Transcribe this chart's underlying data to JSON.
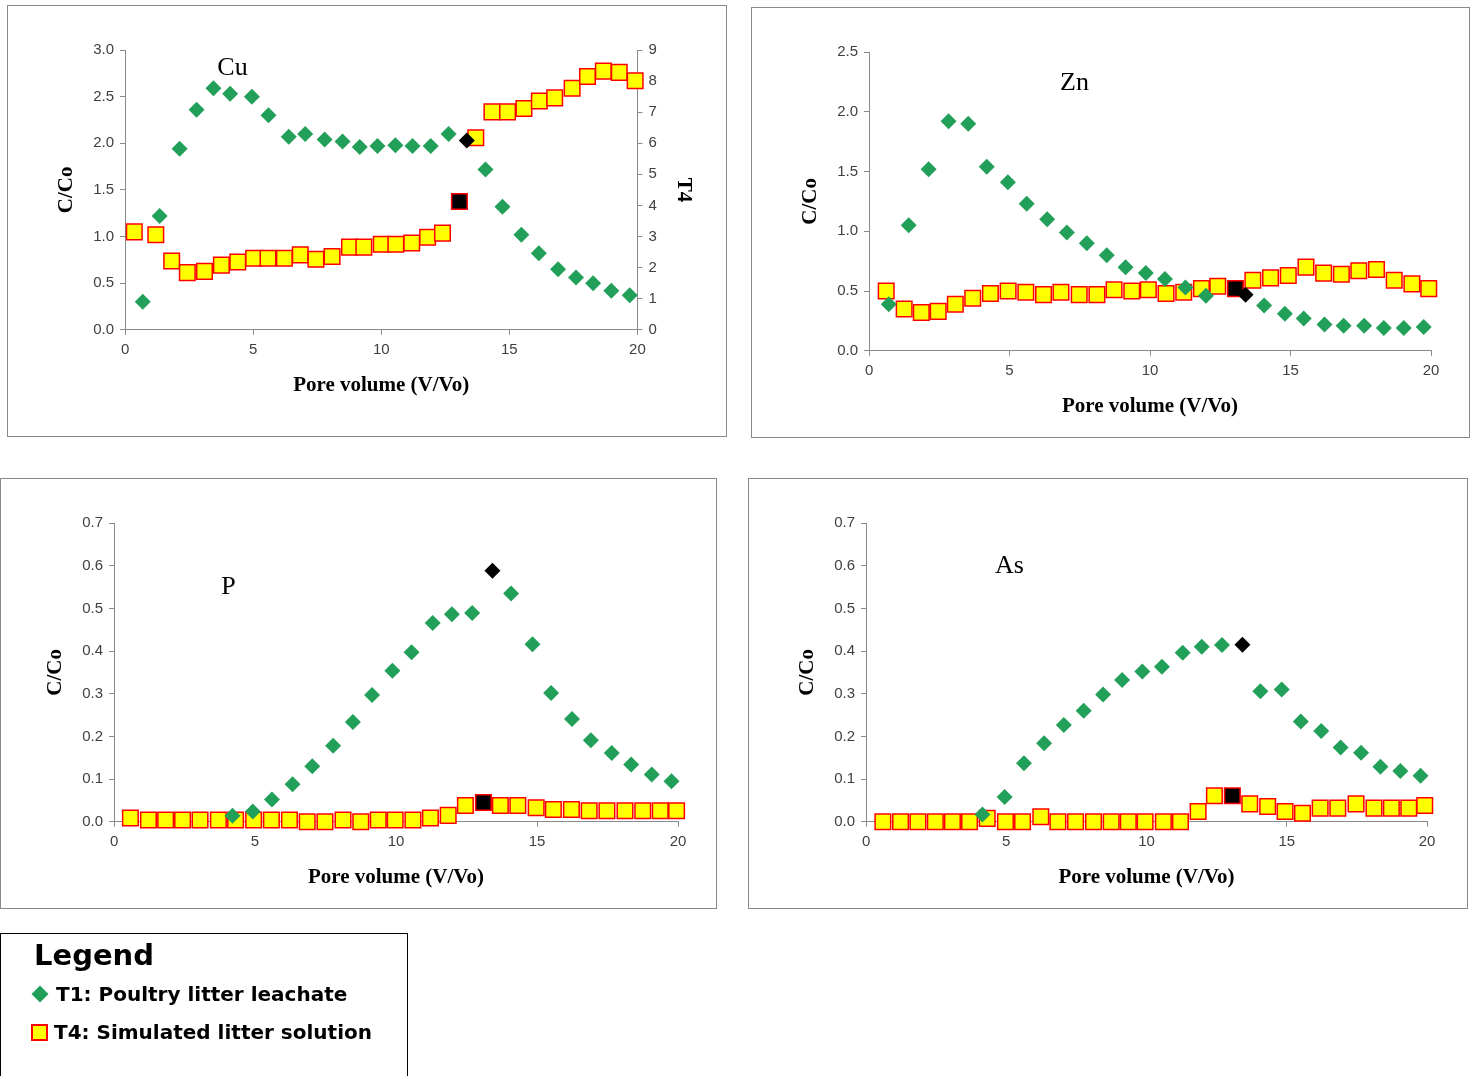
{
  "chart_data": [
    {
      "type": "scatter",
      "title": "Cu",
      "xlabel": "Pore volume (V/Vo)",
      "ylabel": "C/Co",
      "y2label": "T4",
      "legend": "bottom left",
      "legend_title": "Legend",
      "grid": false,
      "xlim": [
        0,
        20
      ],
      "xticks": [
        0,
        5,
        10,
        15,
        20
      ],
      "ylim": [
        0,
        3
      ],
      "yticks": [
        {
          "value": 0,
          "label": "0.0"
        },
        {
          "value": 0.5,
          "label": "0.5"
        },
        {
          "value": 1,
          "label": "1.0"
        },
        {
          "value": 1.5,
          "label": "1.5"
        },
        {
          "value": 2,
          "label": "2.0"
        },
        {
          "value": 2.5,
          "label": "2.5"
        },
        {
          "value": 3,
          "label": "3.0"
        }
      ],
      "y2lim": [
        0,
        9
      ],
      "y2ticks": [
        0,
        1,
        2,
        3,
        4,
        5,
        6,
        7,
        8,
        9
      ],
      "series": [
        {
          "name": "T1: Poultry litter leachate",
          "marker": "diamond",
          "color": "#22a05a",
          "x": [
            0.69,
            1.35,
            2.13,
            2.79,
            3.45,
            4.1,
            4.95,
            5.6,
            6.39,
            7.03,
            7.79,
            8.49,
            9.16,
            9.85,
            10.55,
            11.22,
            11.93,
            12.63,
            13.34,
            14.07,
            14.73,
            15.47,
            16.15,
            16.9,
            17.6,
            18.27,
            18.98,
            19.7
          ],
          "values": [
            0.3,
            1.22,
            1.94,
            2.36,
            2.59,
            2.53,
            2.5,
            2.3,
            2.07,
            2.1,
            2.04,
            2.02,
            1.96,
            1.97,
            1.98,
            1.97,
            1.97,
            2.1,
            2.03,
            1.72,
            1.32,
            1.02,
            0.82,
            0.65,
            0.56,
            0.5,
            0.42,
            0.37
          ],
          "colors": [
            "#22a05a",
            "#22a05a",
            "#22a05a",
            "#22a05a",
            "#22a05a",
            "#22a05a",
            "#22a05a",
            "#22a05a",
            "#22a05a",
            "#22a05a",
            "#22a05a",
            "#22a05a",
            "#22a05a",
            "#22a05a",
            "#22a05a",
            "#22a05a",
            "#22a05a",
            "#22a05a",
            "#000000",
            "#22a05a",
            "#22a05a",
            "#22a05a",
            "#22a05a",
            "#22a05a",
            "#22a05a",
            "#22a05a",
            "#22a05a",
            "#22a05a"
          ]
        },
        {
          "name": "T4: Simulated litter solution",
          "marker": "square",
          "axis": "y2",
          "color": "#ffff00",
          "x": [
            0.36,
            1.2,
            1.82,
            2.43,
            3.1,
            3.76,
            4.4,
            5.02,
            5.58,
            6.22,
            6.84,
            7.45,
            8.08,
            8.76,
            9.32,
            10.0,
            10.57,
            11.19,
            11.81,
            12.39,
            13.05,
            13.69,
            14.32,
            14.93,
            15.57,
            16.17,
            16.77,
            17.45,
            18.05,
            18.67,
            19.29,
            19.91
          ],
          "values": [
            3.15,
            3.06,
            2.21,
            1.84,
            1.88,
            2.08,
            2.18,
            2.3,
            2.3,
            2.3,
            2.41,
            2.27,
            2.36,
            2.66,
            2.66,
            2.75,
            2.75,
            2.79,
            2.98,
            3.11,
            4.13,
            6.18,
            7.01,
            7.01,
            7.12,
            7.36,
            7.46,
            7.77,
            8.15,
            8.32,
            8.28,
            8.01
          ],
          "colors": [
            "#ffff00",
            "#ffff00",
            "#ffff00",
            "#ffff00",
            "#ffff00",
            "#ffff00",
            "#ffff00",
            "#ffff00",
            "#ffff00",
            "#ffff00",
            "#ffff00",
            "#ffff00",
            "#ffff00",
            "#ffff00",
            "#ffff00",
            "#ffff00",
            "#ffff00",
            "#ffff00",
            "#ffff00",
            "#ffff00",
            "#000000",
            "#ffff00",
            "#ffff00",
            "#ffff00",
            "#ffff00",
            "#ffff00",
            "#ffff00",
            "#ffff00",
            "#ffff00",
            "#ffff00",
            "#ffff00",
            "#ffff00"
          ]
        }
      ]
    },
    {
      "type": "scatter",
      "title": "Zn",
      "xlabel": "Pore volume (V/Vo)",
      "ylabel": "C/Co",
      "grid": false,
      "xlim": [
        0,
        20
      ],
      "xticks": [
        0,
        5,
        10,
        15,
        20
      ],
      "ylim": [
        0,
        2.5
      ],
      "yticks": [
        {
          "value": 0,
          "label": "0.0"
        },
        {
          "value": 0.5,
          "label": "0.5"
        },
        {
          "value": 1,
          "label": "1.0"
        },
        {
          "value": 1.5,
          "label": "1.5"
        },
        {
          "value": 2,
          "label": "2.0"
        },
        {
          "value": 2.5,
          "label": "2.5"
        }
      ],
      "series": [
        {
          "marker": "diamond",
          "x": [
            0.7,
            1.41,
            2.12,
            2.83,
            3.53,
            4.19,
            4.94,
            5.61,
            6.34,
            7.04,
            7.75,
            8.46,
            9.13,
            9.85,
            10.53,
            11.26,
            11.99,
            13.4,
            14.06,
            14.8,
            15.47,
            16.21,
            16.89,
            17.62,
            18.32,
            19.03,
            19.74
          ],
          "values": [
            0.39,
            1.05,
            1.52,
            1.92,
            1.9,
            1.54,
            1.41,
            1.23,
            1.1,
            0.99,
            0.9,
            0.8,
            0.7,
            0.65,
            0.6,
            0.53,
            0.46,
            0.47,
            0.38,
            0.31,
            0.27,
            0.22,
            0.21,
            0.21,
            0.19,
            0.19,
            0.2
          ],
          "colors": [
            "#22a05a",
            "#22a05a",
            "#22a05a",
            "#22a05a",
            "#22a05a",
            "#22a05a",
            "#22a05a",
            "#22a05a",
            "#22a05a",
            "#22a05a",
            "#22a05a",
            "#22a05a",
            "#22a05a",
            "#22a05a",
            "#22a05a",
            "#22a05a",
            "#22a05a",
            "#000000",
            "#22a05a",
            "#22a05a",
            "#22a05a",
            "#22a05a",
            "#22a05a",
            "#22a05a",
            "#22a05a",
            "#22a05a",
            "#22a05a"
          ]
        },
        {
          "marker": "square",
          "x": [
            0.61,
            1.25,
            1.86,
            2.46,
            3.07,
            3.69,
            4.32,
            4.95,
            5.58,
            6.21,
            6.83,
            7.48,
            8.11,
            8.72,
            9.35,
            9.94,
            10.57,
            11.2,
            11.83,
            12.41,
            13.04,
            13.66,
            14.29,
            14.92,
            15.55,
            16.18,
            16.81,
            17.43,
            18.06,
            18.69,
            19.32,
            19.92
          ],
          "values": [
            0.5,
            0.35,
            0.32,
            0.33,
            0.39,
            0.44,
            0.48,
            0.5,
            0.49,
            0.47,
            0.49,
            0.47,
            0.47,
            0.51,
            0.5,
            0.51,
            0.48,
            0.49,
            0.52,
            0.54,
            0.52,
            0.59,
            0.61,
            0.63,
            0.7,
            0.65,
            0.64,
            0.67,
            0.68,
            0.59,
            0.56,
            0.52
          ],
          "colors": [
            "#ffff00",
            "#ffff00",
            "#ffff00",
            "#ffff00",
            "#ffff00",
            "#ffff00",
            "#ffff00",
            "#ffff00",
            "#ffff00",
            "#ffff00",
            "#ffff00",
            "#ffff00",
            "#ffff00",
            "#ffff00",
            "#ffff00",
            "#ffff00",
            "#ffff00",
            "#ffff00",
            "#ffff00",
            "#ffff00",
            "#000000",
            "#ffff00",
            "#ffff00",
            "#ffff00",
            "#ffff00",
            "#ffff00",
            "#ffff00",
            "#ffff00",
            "#ffff00",
            "#ffff00",
            "#ffff00",
            "#ffff00"
          ]
        }
      ]
    },
    {
      "type": "scatter",
      "title": "P",
      "xlabel": "Pore volume (V/Vo)",
      "ylabel": "C/Co",
      "grid": false,
      "xlim": [
        0,
        20
      ],
      "xticks": [
        0,
        5,
        10,
        15,
        20
      ],
      "ylim": [
        0,
        0.7
      ],
      "yticks": [
        {
          "value": 0,
          "label": "0.0"
        },
        0.1,
        0.2,
        0.3,
        0.4,
        0.5,
        0.6,
        0.7
      ],
      "series": [
        {
          "marker": "diamond",
          "x": [
            4.2,
            4.92,
            5.6,
            6.33,
            7.03,
            7.77,
            8.47,
            9.15,
            9.87,
            10.55,
            11.3,
            11.98,
            12.7,
            13.42,
            14.08,
            14.84,
            15.5,
            16.24,
            16.91,
            17.65,
            18.34,
            19.07,
            19.77
          ],
          "values": [
            0.014,
            0.024,
            0.052,
            0.088,
            0.13,
            0.178,
            0.234,
            0.297,
            0.354,
            0.397,
            0.466,
            0.486,
            0.489,
            0.588,
            0.535,
            0.416,
            0.302,
            0.241,
            0.191,
            0.161,
            0.134,
            0.111,
            0.095
          ],
          "colors": [
            "#22a05a",
            "#22a05a",
            "#22a05a",
            "#22a05a",
            "#22a05a",
            "#22a05a",
            "#22a05a",
            "#22a05a",
            "#22a05a",
            "#22a05a",
            "#22a05a",
            "#22a05a",
            "#22a05a",
            "#000000",
            "#22a05a",
            "#22a05a",
            "#22a05a",
            "#22a05a",
            "#22a05a",
            "#22a05a",
            "#22a05a",
            "#22a05a",
            "#22a05a"
          ]
        },
        {
          "marker": "square",
          "x": [
            0.58,
            1.22,
            1.83,
            2.43,
            3.05,
            3.7,
            4.31,
            4.95,
            5.58,
            6.22,
            6.85,
            7.48,
            8.12,
            8.75,
            9.37,
            9.97,
            10.6,
            11.22,
            11.85,
            12.46,
            13.1,
            13.7,
            14.32,
            14.97,
            15.58,
            16.22,
            16.85,
            17.48,
            18.12,
            18.75,
            19.37,
            19.95
          ],
          "values": [
            0.009,
            0.004,
            0.004,
            0.004,
            0.004,
            0.004,
            0.004,
            0.004,
            0.004,
            0.004,
            0.0,
            0.0,
            0.004,
            0.0,
            0.004,
            0.004,
            0.004,
            0.009,
            0.015,
            0.038,
            0.045,
            0.038,
            0.038,
            0.033,
            0.029,
            0.029,
            0.026,
            0.026,
            0.026,
            0.026,
            0.026,
            0.026
          ],
          "colors": [
            "#ffff00",
            "#ffff00",
            "#ffff00",
            "#ffff00",
            "#ffff00",
            "#ffff00",
            "#ffff00",
            "#ffff00",
            "#ffff00",
            "#ffff00",
            "#ffff00",
            "#ffff00",
            "#ffff00",
            "#ffff00",
            "#ffff00",
            "#ffff00",
            "#ffff00",
            "#ffff00",
            "#ffff00",
            "#ffff00",
            "#000000",
            "#ffff00",
            "#ffff00",
            "#ffff00",
            "#ffff00",
            "#ffff00",
            "#ffff00",
            "#ffff00",
            "#ffff00",
            "#ffff00",
            "#ffff00",
            "#ffff00"
          ]
        }
      ]
    },
    {
      "type": "scatter",
      "title": "As",
      "xlabel": "Pore volume (V/Vo)",
      "ylabel": "C/Co",
      "grid": false,
      "xlim": [
        0,
        20
      ],
      "xticks": [
        0,
        5,
        10,
        15,
        20
      ],
      "ylim": [
        0,
        0.7
      ],
      "yticks": [
        {
          "value": 0,
          "label": "0.0"
        },
        0.1,
        0.2,
        0.3,
        0.4,
        0.5,
        0.6,
        0.7
      ],
      "series": [
        {
          "marker": "diamond",
          "x": [
            4.15,
            4.94,
            5.63,
            6.35,
            7.05,
            7.76,
            8.45,
            9.13,
            9.85,
            10.55,
            11.29,
            11.97,
            12.69,
            13.42,
            14.06,
            14.82,
            15.5,
            16.23,
            16.92,
            17.65,
            18.34,
            19.05,
            19.77
          ],
          "values": [
            0.017,
            0.058,
            0.137,
            0.184,
            0.227,
            0.26,
            0.298,
            0.332,
            0.352,
            0.363,
            0.396,
            0.41,
            0.414,
            0.415,
            0.306,
            0.31,
            0.235,
            0.213,
            0.174,
            0.162,
            0.129,
            0.119,
            0.108
          ],
          "colors": [
            "#22a05a",
            "#22a05a",
            "#22a05a",
            "#22a05a",
            "#22a05a",
            "#22a05a",
            "#22a05a",
            "#22a05a",
            "#22a05a",
            "#22a05a",
            "#22a05a",
            "#22a05a",
            "#22a05a",
            "#000000",
            "#22a05a",
            "#22a05a",
            "#22a05a",
            "#22a05a",
            "#22a05a",
            "#22a05a",
            "#22a05a",
            "#22a05a",
            "#22a05a"
          ]
        },
        {
          "marker": "square",
          "x": [
            0.6,
            1.23,
            1.85,
            2.47,
            3.08,
            3.69,
            4.32,
            4.97,
            5.58,
            6.23,
            6.84,
            7.47,
            8.11,
            8.74,
            9.35,
            9.95,
            10.6,
            11.21,
            11.84,
            12.42,
            13.06,
            13.68,
            14.32,
            14.94,
            15.56,
            16.19,
            16.82,
            17.47,
            18.11,
            18.73,
            19.35,
            19.92
          ],
          "values": [
            0,
            0,
            0,
            0,
            0,
            0,
            0.008,
            0,
            0,
            0.012,
            0,
            0,
            0,
            0,
            0,
            0,
            0,
            0,
            0.024,
            0.061,
            0.061,
            0.042,
            0.036,
            0.024,
            0.02,
            0.032,
            0.032,
            0.042,
            0.032,
            0.032,
            0.032,
            0.038
          ],
          "colors": [
            "#ffff00",
            "#ffff00",
            "#ffff00",
            "#ffff00",
            "#ffff00",
            "#ffff00",
            "#ffff00",
            "#ffff00",
            "#ffff00",
            "#ffff00",
            "#ffff00",
            "#ffff00",
            "#ffff00",
            "#ffff00",
            "#ffff00",
            "#ffff00",
            "#ffff00",
            "#ffff00",
            "#ffff00",
            "#ffff00",
            "#000000",
            "#ffff00",
            "#ffff00",
            "#ffff00",
            "#ffff00",
            "#ffff00",
            "#ffff00",
            "#ffff00",
            "#ffff00",
            "#ffff00",
            "#ffff00",
            "#ffff00"
          ]
        }
      ]
    }
  ]
}
